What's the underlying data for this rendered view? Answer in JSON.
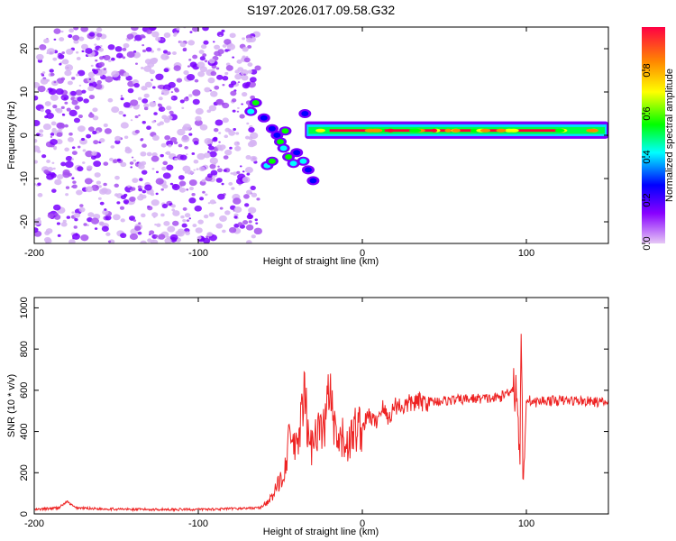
{
  "title": "S197.2026.017.09.58.G32",
  "chart_data": [
    {
      "type": "heatmap",
      "name": "spectrogram",
      "xlabel": "Height of straight line (km)",
      "ylabel": "Frequency (Hz)",
      "xlim": [
        -200,
        150
      ],
      "ylim": [
        -25,
        25
      ],
      "xticks": [
        -200,
        -100,
        0,
        100
      ],
      "yticks": [
        -20,
        -10,
        0,
        10,
        20
      ],
      "colorbar": {
        "label": "Normalized spectral amplitude",
        "range": [
          0,
          1
        ],
        "ticks": [
          "0.0",
          "0.2",
          "0.4",
          "0.6",
          "0.8"
        ],
        "colors": [
          "#e6c8f5",
          "#8800ff",
          "#0000ff",
          "#00ffff",
          "#00ff00",
          "#ffff00",
          "#ff8800",
          "#ff0033"
        ]
      },
      "regions": [
        {
          "x": [
            -200,
            -63
          ],
          "y": [
            -25,
            25
          ],
          "level": 0.1,
          "desc": "diffuse noise"
        },
        {
          "x": [
            -70,
            -20
          ],
          "y": [
            -12,
            8
          ],
          "level": 0.5,
          "desc": "frequency drift"
        },
        {
          "x": [
            -35,
            150
          ],
          "y": [
            -0.5,
            2.5
          ],
          "level": 0.9,
          "desc": "carrier tone near 1 Hz"
        }
      ]
    },
    {
      "type": "line",
      "name": "snr",
      "xlabel": "Height of straight line (km)",
      "ylabel": "SNR (10 * v/v)",
      "xlim": [
        -200,
        150
      ],
      "ylim": [
        0,
        1050
      ],
      "xticks": [
        -200,
        -100,
        0,
        100
      ],
      "yticks": [
        0,
        200,
        400,
        600,
        800,
        1000
      ],
      "color": "#ee2222",
      "series": [
        {
          "name": "SNR",
          "x": [
            -200,
            -185,
            -180,
            -175,
            -160,
            -140,
            -120,
            -100,
            -80,
            -62,
            -55,
            -48,
            -44,
            -40,
            -38,
            -35,
            -32,
            -28,
            -24,
            -20,
            -16,
            -12,
            -8,
            -4,
            0,
            4,
            8,
            12,
            16,
            20,
            25,
            30,
            40,
            50,
            60,
            70,
            80,
            85,
            90,
            93,
            95,
            96,
            97,
            98,
            100,
            105,
            110,
            120,
            130,
            140,
            150
          ],
          "values": [
            20,
            30,
            60,
            30,
            25,
            22,
            22,
            22,
            25,
            30,
            80,
            200,
            380,
            300,
            420,
            560,
            300,
            430,
            380,
            600,
            330,
            360,
            340,
            420,
            420,
            480,
            440,
            520,
            460,
            530,
            520,
            540,
            545,
            550,
            555,
            560,
            560,
            570,
            600,
            620,
            520,
            200,
            880,
            100,
            560,
            540,
            550,
            550,
            550,
            545,
            540
          ]
        }
      ]
    }
  ]
}
